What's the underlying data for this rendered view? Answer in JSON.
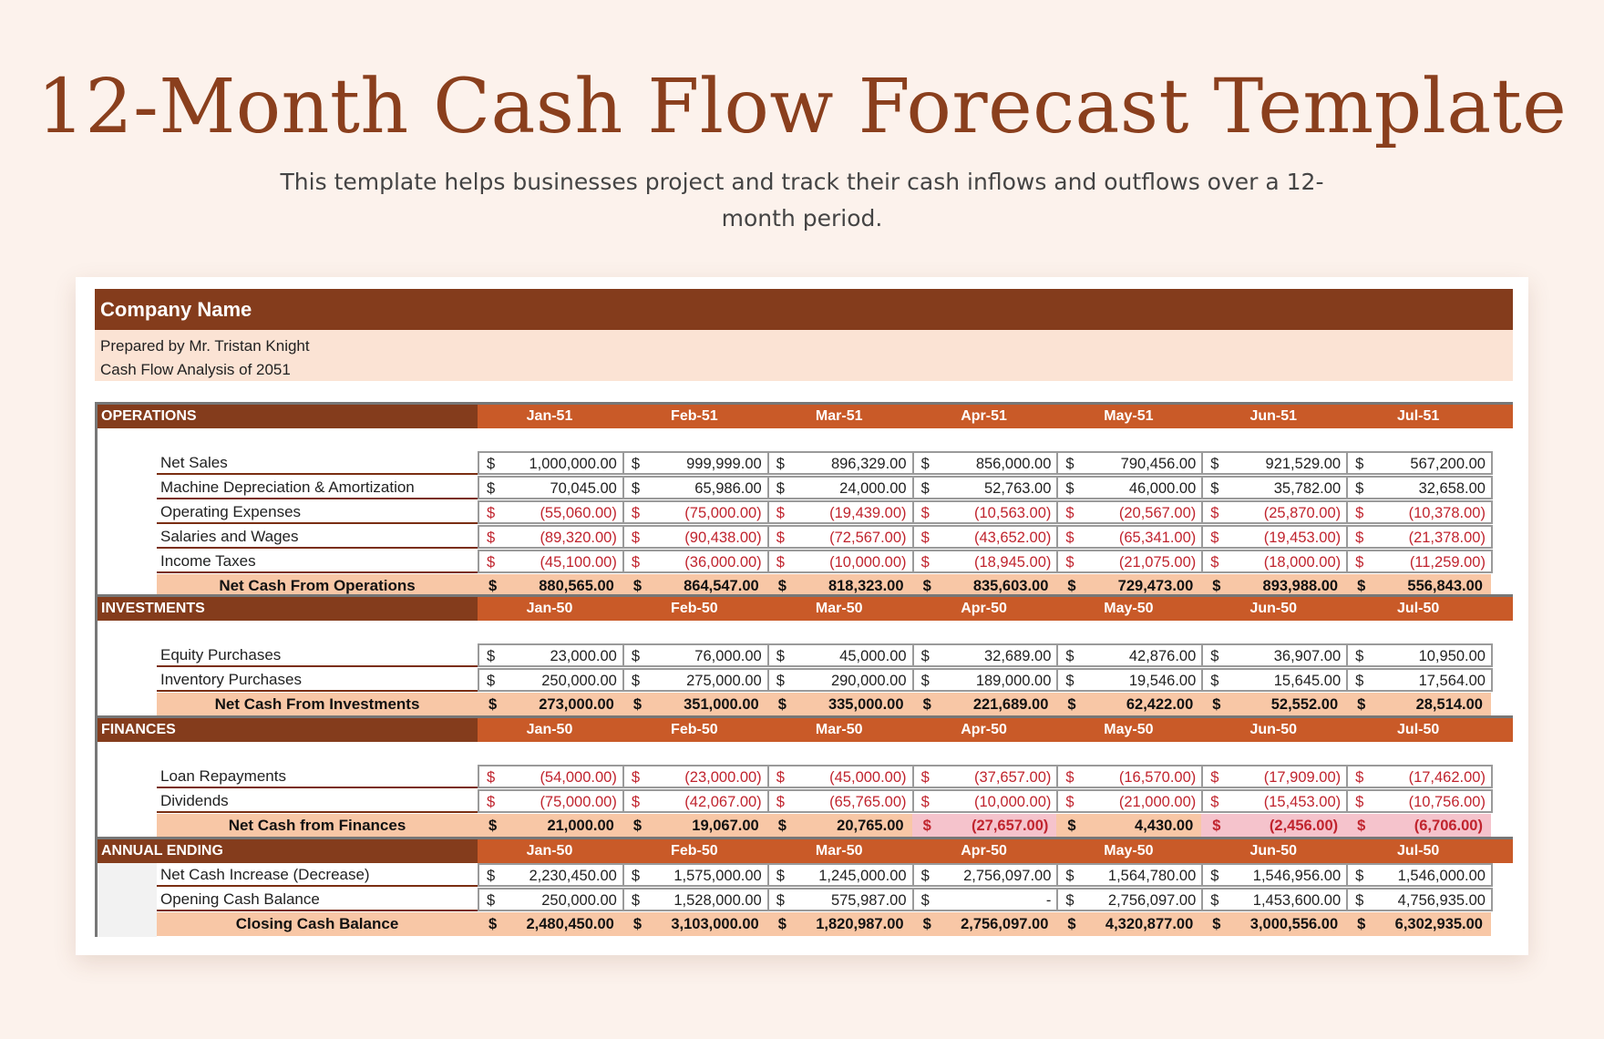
{
  "page": {
    "title": "12-Month Cash Flow Forecast Template",
    "subtitle": "This template helps businesses project and track their cash inflows and outflows over a 12-month period."
  },
  "sheet": {
    "company": "Company Name",
    "prepared_by": "Prepared by Mr. Tristan Knight",
    "analysis": "Cash Flow Analysis of 2051",
    "currency_symbol": "$",
    "sections": [
      {
        "label": "OPERATIONS",
        "months": [
          "Jan-51",
          "Feb-51",
          "Mar-51",
          "Apr-51",
          "May-51",
          "Jun-51",
          "Jul-51"
        ],
        "rows": [
          {
            "label": "Net Sales",
            "values": [
              "1,000,000.00",
              "999,999.00",
              "896,329.00",
              "856,000.00",
              "790,456.00",
              "921,529.00",
              "567,200.00"
            ]
          },
          {
            "label": "Machine Depreciation & Amortization",
            "values": [
              "70,045.00",
              "65,986.00",
              "24,000.00",
              "52,763.00",
              "46,000.00",
              "35,782.00",
              "32,658.00"
            ]
          },
          {
            "label": "Operating Expenses",
            "values": [
              "(55,060.00)",
              "(75,000.00)",
              "(19,439.00)",
              "(10,563.00)",
              "(20,567.00)",
              "(25,870.00)",
              "(10,378.00)"
            ]
          },
          {
            "label": "Salaries and Wages",
            "values": [
              "(89,320.00)",
              "(90,438.00)",
              "(72,567.00)",
              "(43,652.00)",
              "(65,341.00)",
              "(19,453.00)",
              "(21,378.00)"
            ]
          },
          {
            "label": "Income Taxes",
            "values": [
              "(45,100.00)",
              "(36,000.00)",
              "(10,000.00)",
              "(18,945.00)",
              "(21,075.00)",
              "(18,000.00)",
              "(11,259.00)"
            ]
          }
        ],
        "total": {
          "label": "Net Cash From Operations",
          "values": [
            "880,565.00",
            "864,547.00",
            "818,323.00",
            "835,603.00",
            "729,473.00",
            "893,988.00",
            "556,843.00"
          ]
        }
      },
      {
        "label": "INVESTMENTS",
        "months": [
          "Jan-50",
          "Feb-50",
          "Mar-50",
          "Apr-50",
          "May-50",
          "Jun-50",
          "Jul-50"
        ],
        "rows": [
          {
            "label": "Equity Purchases",
            "values": [
              "23,000.00",
              "76,000.00",
              "45,000.00",
              "32,689.00",
              "42,876.00",
              "36,907.00",
              "10,950.00"
            ]
          },
          {
            "label": "Inventory Purchases",
            "values": [
              "250,000.00",
              "275,000.00",
              "290,000.00",
              "189,000.00",
              "19,546.00",
              "15,645.00",
              "17,564.00"
            ]
          }
        ],
        "total": {
          "label": "Net Cash From Investments",
          "values": [
            "273,000.00",
            "351,000.00",
            "335,000.00",
            "221,689.00",
            "62,422.00",
            "52,552.00",
            "28,514.00"
          ]
        }
      },
      {
        "label": "FINANCES",
        "months": [
          "Jan-50",
          "Feb-50",
          "Mar-50",
          "Apr-50",
          "May-50",
          "Jun-50",
          "Jul-50"
        ],
        "rows": [
          {
            "label": "Loan Repayments",
            "values": [
              "(54,000.00)",
              "(23,000.00)",
              "(45,000.00)",
              "(37,657.00)",
              "(16,570.00)",
              "(17,909.00)",
              "(17,462.00)"
            ]
          },
          {
            "label": "Dividends",
            "values": [
              "(75,000.00)",
              "(42,067.00)",
              "(65,765.00)",
              "(10,000.00)",
              "(21,000.00)",
              "(15,453.00)",
              "(10,756.00)"
            ]
          }
        ],
        "total": {
          "label": "Net Cash from Finances",
          "values": [
            "21,000.00",
            "19,067.00",
            "20,765.00",
            "(27,657.00)",
            "4,430.00",
            "(2,456.00)",
            "(6,706.00)"
          ]
        }
      },
      {
        "label": "ANNUAL ENDING",
        "months": [
          "Jan-50",
          "Feb-50",
          "Mar-50",
          "Apr-50",
          "May-50",
          "Jun-50",
          "Jul-50"
        ],
        "rows": [
          {
            "label": "Net Cash Increase (Decrease)",
            "values": [
              "2,230,450.00",
              "1,575,000.00",
              "1,245,000.00",
              "2,756,097.00",
              "1,564,780.00",
              "1,546,956.00",
              "1,546,000.00"
            ]
          },
          {
            "label": "Opening Cash Balance",
            "values": [
              "250,000.00",
              "1,528,000.00",
              "575,987.00",
              "-",
              "2,756,097.00",
              "1,453,600.00",
              "4,756,935.00"
            ]
          }
        ],
        "total": {
          "label": "Closing Cash Balance",
          "values": [
            "2,480,450.00",
            "3,103,000.00",
            "1,820,987.00",
            "2,756,097.00",
            "4,320,877.00",
            "3,000,556.00",
            "6,302,935.00"
          ]
        }
      }
    ]
  },
  "colors": {
    "title": "#8a3f1d",
    "header_dark": "#843c1c",
    "header_band": "#c95a28",
    "total_fill": "#f8c7a6",
    "negative_total_fill": "#f5c3cc",
    "negative_text": "#c0242e",
    "background": "#fcf2ec"
  }
}
